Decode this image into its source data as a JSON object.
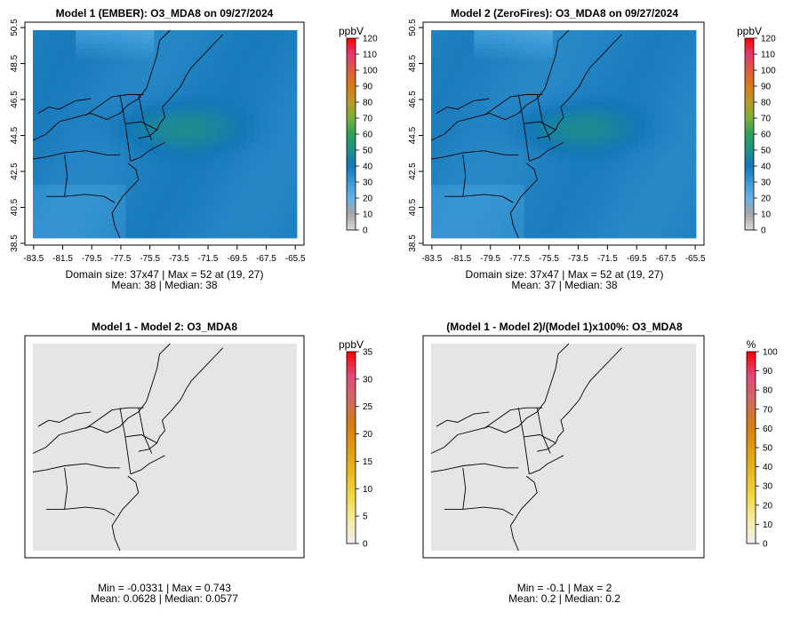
{
  "figure": {
    "colors": {
      "background": "#ffffff",
      "zero_fill": "#e5e5e5",
      "border": "#000000",
      "coast": "#000000"
    }
  },
  "chart_data": [
    {
      "type": "heatmap",
      "title": "Model 1 (EMBER): O3_MDA8 on 09/27/2024",
      "unit": "ppbV",
      "x_ticks": [
        "-83.5",
        "-81.5",
        "-79.5",
        "-77.5",
        "-75.5",
        "-73.5",
        "-71.5",
        "-69.5",
        "-67.5",
        "-65.5"
      ],
      "y_ticks": [
        "38.5",
        "40.5",
        "42.5",
        "44.5",
        "46.5",
        "48.5",
        "50.5"
      ],
      "xlim": [
        -84.1,
        -64.9
      ],
      "ylim": [
        38.4,
        50.8
      ],
      "colorbar_ticks": [
        "0",
        "10",
        "20",
        "30",
        "40",
        "50",
        "60",
        "70",
        "80",
        "90",
        "100",
        "110",
        "120"
      ],
      "colorbar_range": [
        0,
        120
      ],
      "colorbar_stops": [
        "#d9d9d9",
        "#a6a6a6",
        "#66b2e6",
        "#3a98d4",
        "#1477b8",
        "#1e8f8a",
        "#2ea05a",
        "#7ab03b",
        "#b89a2a",
        "#d57a18",
        "#de5a42",
        "#e23a6e",
        "#ff0000"
      ],
      "field": "ember",
      "stat_lines": [
        "Domain size: 37x47 | Max = 52 at (19, 27)",
        "Mean: 38 |  Median: 38"
      ]
    },
    {
      "type": "heatmap",
      "title": "Model 2 (ZeroFires): O3_MDA8 on 09/27/2024",
      "unit": "ppbV",
      "x_ticks": [
        "-83.5",
        "-81.5",
        "-79.5",
        "-77.5",
        "-75.5",
        "-73.5",
        "-71.5",
        "-69.5",
        "-67.5",
        "-65.5"
      ],
      "y_ticks": [
        "38.5",
        "40.5",
        "42.5",
        "44.5",
        "46.5",
        "48.5",
        "50.5"
      ],
      "xlim": [
        -84.1,
        -64.9
      ],
      "ylim": [
        38.4,
        50.8
      ],
      "colorbar_ticks": [
        "0",
        "10",
        "20",
        "30",
        "40",
        "50",
        "60",
        "70",
        "80",
        "90",
        "100",
        "110",
        "120"
      ],
      "colorbar_range": [
        0,
        120
      ],
      "colorbar_stops": [
        "#d9d9d9",
        "#a6a6a6",
        "#66b2e6",
        "#3a98d4",
        "#1477b8",
        "#1e8f8a",
        "#2ea05a",
        "#7ab03b",
        "#b89a2a",
        "#d57a18",
        "#de5a42",
        "#e23a6e",
        "#ff0000"
      ],
      "field": "zerofires",
      "stat_lines": [
        "Domain size: 37x47 | Max = 52 at (19, 27)",
        "Mean: 37 |  Median: 38"
      ]
    },
    {
      "type": "heatmap",
      "title": "Model 1 - Model 2: O3_MDA8",
      "unit": "ppbV",
      "x_ticks": [],
      "y_ticks": [],
      "xlim": [
        -84.1,
        -64.9
      ],
      "ylim": [
        38.4,
        50.8
      ],
      "colorbar_ticks": [
        "0",
        "5",
        "10",
        "15",
        "20",
        "25",
        "30",
        "35"
      ],
      "colorbar_range": [
        0,
        35
      ],
      "colorbar_stops": [
        "#f0f0f0",
        "#f5eba0",
        "#f2d640",
        "#e8b820",
        "#e09a10",
        "#d57a18",
        "#cf6a60",
        "#e04a78",
        "#ff0000"
      ],
      "field": "flat",
      "stat_lines": [
        "Min = -0.0331 | Max = 0.743",
        "Mean: 0.0628 |  Median: 0.0577"
      ]
    },
    {
      "type": "heatmap",
      "title": "(Model 1 - Model 2)/(Model 1)x100%: O3_MDA8",
      "unit": "%",
      "x_ticks": [],
      "y_ticks": [],
      "xlim": [
        -84.1,
        -64.9
      ],
      "ylim": [
        38.4,
        50.8
      ],
      "colorbar_ticks": [
        "0",
        "10",
        "20",
        "30",
        "40",
        "50",
        "60",
        "70",
        "80",
        "90",
        "100"
      ],
      "colorbar_range": [
        0,
        100
      ],
      "colorbar_stops": [
        "#f0f0f0",
        "#f5eba0",
        "#f2d640",
        "#e8b820",
        "#e09a10",
        "#d57a18",
        "#cf6a60",
        "#e04a78",
        "#ff0000"
      ],
      "field": "flat",
      "stat_lines": [
        "Min = -0.1 | Max = 2",
        "Mean: 0.2 |  Median: 0.2"
      ]
    }
  ]
}
